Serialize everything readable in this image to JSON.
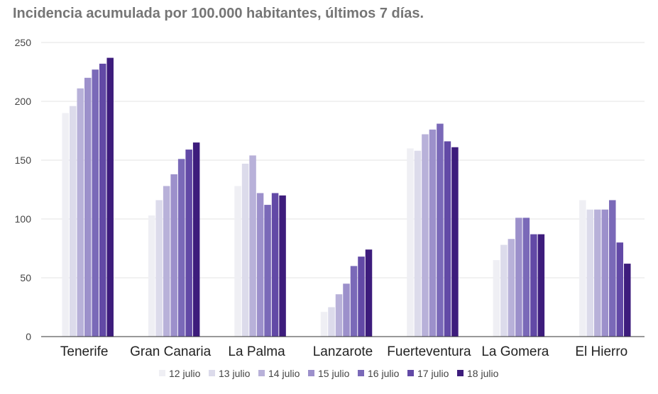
{
  "title": "Incidencia acumulada por 100.000 habitantes, últimos 7 días.",
  "chart_data": {
    "type": "bar",
    "title": "Incidencia acumulada por 100.000 habitantes, últimos 7 días.",
    "xlabel": "",
    "ylabel": "",
    "ylim": [
      0,
      250
    ],
    "yticks": [
      0,
      50,
      100,
      150,
      200,
      250
    ],
    "grid": true,
    "legend_position": "bottom",
    "categories": [
      "Tenerife",
      "Gran Canaria",
      "La Palma",
      "Lanzarote",
      "Fuerteventura",
      "La Gomera",
      "El Hierro"
    ],
    "series": [
      {
        "name": "12 julio",
        "color": "#efeff4",
        "values": [
          190,
          103,
          128,
          21,
          160,
          65,
          116
        ]
      },
      {
        "name": "13 julio",
        "color": "#dcdbeb",
        "values": [
          196,
          116,
          147,
          25,
          158,
          78,
          108
        ]
      },
      {
        "name": "14 julio",
        "color": "#b8b1d9",
        "values": [
          211,
          128,
          154,
          36,
          172,
          83,
          108
        ]
      },
      {
        "name": "15 julio",
        "color": "#9c90cb",
        "values": [
          220,
          138,
          122,
          45,
          176,
          101,
          108
        ]
      },
      {
        "name": "16 julio",
        "color": "#7a69b8",
        "values": [
          227,
          151,
          112,
          60,
          181,
          101,
          116
        ]
      },
      {
        "name": "17 julio",
        "color": "#6249a6",
        "values": [
          232,
          159,
          122,
          68,
          166,
          87,
          80
        ]
      },
      {
        "name": "18 julio",
        "color": "#3d1c7c",
        "values": [
          237,
          165,
          120,
          74,
          161,
          87,
          62
        ]
      }
    ]
  }
}
